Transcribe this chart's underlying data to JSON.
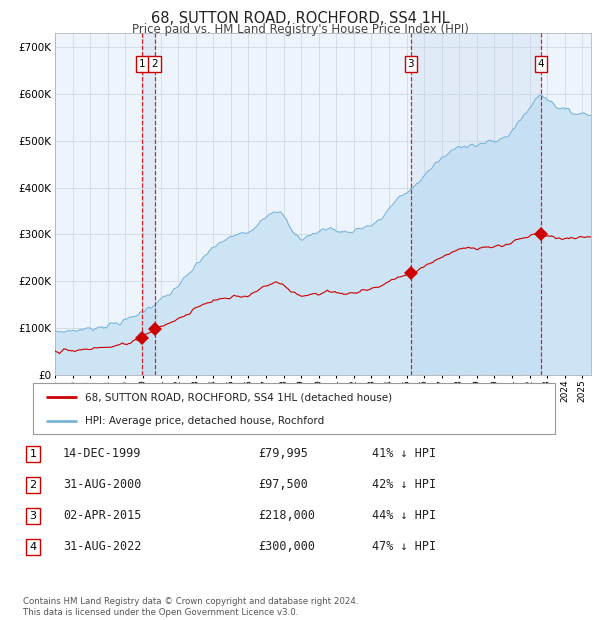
{
  "title": "68, SUTTON ROAD, ROCHFORD, SS4 1HL",
  "subtitle": "Price paid vs. HM Land Registry's House Price Index (HPI)",
  "title_fontsize": 10.5,
  "subtitle_fontsize": 8.5,
  "background_color": "#ffffff",
  "plot_bg_color": "#eef4fb",
  "ylim": [
    0,
    730000
  ],
  "yticks": [
    0,
    100000,
    200000,
    300000,
    400000,
    500000,
    600000,
    700000
  ],
  "ytick_labels": [
    "£0",
    "£100K",
    "£200K",
    "£300K",
    "£400K",
    "£500K",
    "£600K",
    "£700K"
  ],
  "hpi_color": "#7ab5d8",
  "hpi_fill_color": "#cde4f5",
  "price_color": "#cc0000",
  "dashed_line_color": "#cc0000",
  "grid_color": "#c8d4e0",
  "sale_dates": [
    1999.96,
    2000.66,
    2015.25,
    2022.66
  ],
  "sale_prices": [
    79995,
    97500,
    218000,
    300000
  ],
  "sale_labels": [
    "1",
    "2",
    "3",
    "4"
  ],
  "legend_label_price": "68, SUTTON ROAD, ROCHFORD, SS4 1HL (detached house)",
  "legend_label_hpi": "HPI: Average price, detached house, Rochford",
  "table_rows": [
    [
      "1",
      "14-DEC-1999",
      "£79,995",
      "41% ↓ HPI"
    ],
    [
      "2",
      "31-AUG-2000",
      "£97,500",
      "42% ↓ HPI"
    ],
    [
      "3",
      "02-APR-2015",
      "£218,000",
      "44% ↓ HPI"
    ],
    [
      "4",
      "31-AUG-2022",
      "£300,000",
      "47% ↓ HPI"
    ]
  ],
  "footer": "Contains HM Land Registry data © Crown copyright and database right 2024.\nThis data is licensed under the Open Government Licence v3.0.",
  "xmin": 1995.0,
  "xmax": 2025.5
}
